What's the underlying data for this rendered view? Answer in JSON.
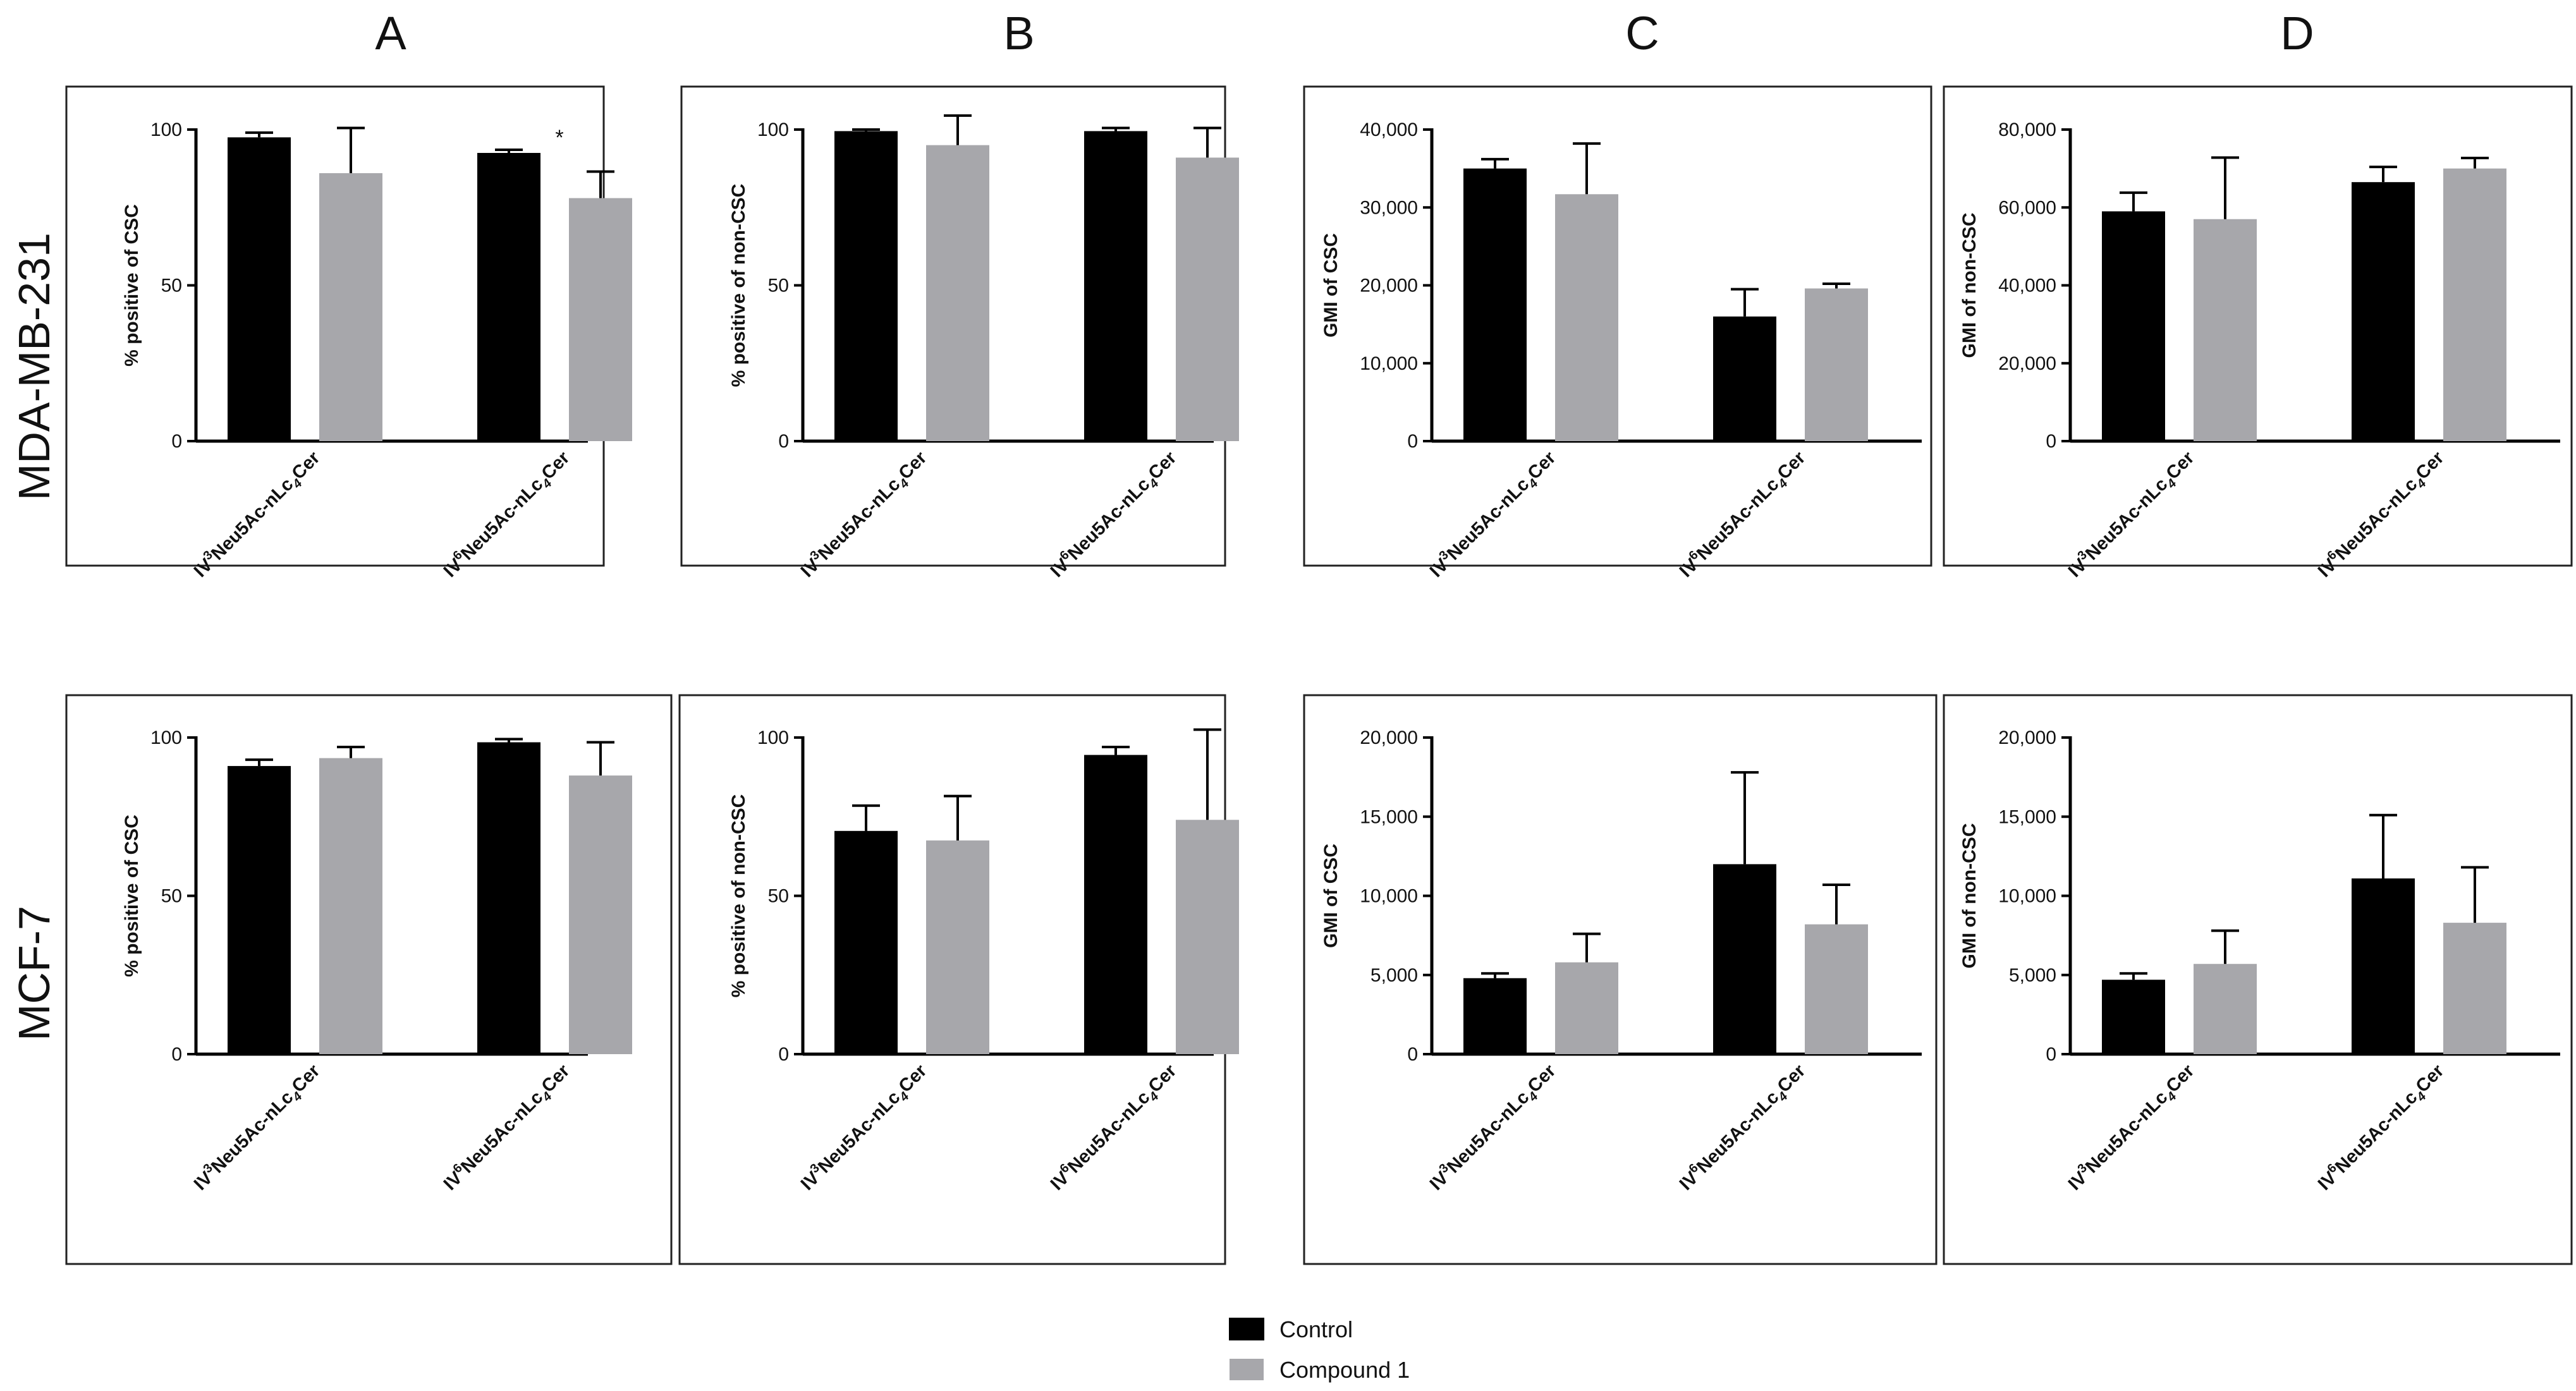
{
  "column_letters": [
    "A",
    "B",
    "C",
    "D"
  ],
  "row_labels": [
    "MDA-MB-231",
    "MCF-7"
  ],
  "legend": [
    {
      "name": "Control",
      "color": "#000000"
    },
    {
      "name": "Compound 1",
      "color": "#a7a7ab"
    }
  ],
  "colors": {
    "control": "#000000",
    "compound": "#a7a7ab",
    "frame": "#222222"
  },
  "chart_data": [
    {
      "type": "bar",
      "id": "mda-a",
      "ylabel": "% positive of CSC",
      "ylim": [
        0,
        100
      ],
      "yticks": [
        0,
        50,
        100
      ],
      "ytick_labels": [
        "0",
        "50",
        "100"
      ],
      "categories": [
        {
          "prefix": "IV",
          "sup": "3",
          "rest": "Neu5Ac-nLc",
          "sub": "4",
          "tail": "Cer"
        },
        {
          "prefix": "IV",
          "sup": "6",
          "rest": "Neu5Ac-nLc",
          "sub": "4",
          "tail": "Cer"
        }
      ],
      "series": [
        {
          "name": "Control",
          "values": [
            97.5,
            92.5
          ],
          "errors": [
            1.5,
            1
          ]
        },
        {
          "name": "Compound 1",
          "values": [
            86,
            78
          ],
          "errors": [
            14.5,
            8.5
          ]
        }
      ],
      "annotations": [
        {
          "text": "*",
          "category": 1,
          "series": 0
        }
      ]
    },
    {
      "type": "bar",
      "id": "mda-b",
      "ylabel": "% positive of non-CSC",
      "ylim": [
        0,
        100
      ],
      "yticks": [
        0,
        50,
        100
      ],
      "ytick_labels": [
        "0",
        "50",
        "100"
      ],
      "categories": [
        {
          "prefix": "IV",
          "sup": "3",
          "rest": "Neu5Ac-nLc",
          "sub": "4",
          "tail": "Cer"
        },
        {
          "prefix": "IV",
          "sup": "6",
          "rest": "Neu5Ac-nLc",
          "sub": "4",
          "tail": "Cer"
        }
      ],
      "series": [
        {
          "name": "Control",
          "values": [
            99.5,
            99.5
          ],
          "errors": [
            0.5,
            1
          ]
        },
        {
          "name": "Compound 1",
          "values": [
            95,
            91
          ],
          "errors": [
            9.5,
            9.5
          ]
        }
      ],
      "annotations": []
    },
    {
      "type": "bar",
      "id": "mda-c",
      "ylabel": "GMI of CSC",
      "ylim": [
        0,
        40000
      ],
      "yticks": [
        0,
        10000,
        20000,
        30000,
        40000
      ],
      "ytick_labels": [
        "0",
        "10,000",
        "20,000",
        "30,000",
        "40,000"
      ],
      "categories": [
        {
          "prefix": "IV",
          "sup": "3",
          "rest": "Neu5Ac-nLc",
          "sub": "4",
          "tail": "Cer"
        },
        {
          "prefix": "IV",
          "sup": "6",
          "rest": "Neu5Ac-nLc",
          "sub": "4",
          "tail": "Cer"
        }
      ],
      "series": [
        {
          "name": "Control",
          "values": [
            35000,
            16000
          ],
          "errors": [
            1200,
            3500
          ]
        },
        {
          "name": "Compound 1",
          "values": [
            31700,
            19600
          ],
          "errors": [
            6500,
            600
          ]
        }
      ],
      "annotations": []
    },
    {
      "type": "bar",
      "id": "mda-d",
      "ylabel": "GMI of non-CSC",
      "ylim": [
        0,
        80000
      ],
      "yticks": [
        0,
        20000,
        40000,
        60000,
        80000
      ],
      "ytick_labels": [
        "0",
        "20,000",
        "40,000",
        "60,000",
        "80,000"
      ],
      "categories": [
        {
          "prefix": "IV",
          "sup": "3",
          "rest": "Neu5Ac-nLc",
          "sub": "4",
          "tail": "Cer"
        },
        {
          "prefix": "IV",
          "sup": "6",
          "rest": "Neu5Ac-nLc",
          "sub": "4",
          "tail": "Cer"
        }
      ],
      "series": [
        {
          "name": "Control",
          "values": [
            59000,
            66500
          ],
          "errors": [
            4800,
            3900
          ]
        },
        {
          "name": "Compound 1",
          "values": [
            57000,
            70000
          ],
          "errors": [
            15800,
            2700
          ]
        }
      ],
      "annotations": []
    },
    {
      "type": "bar",
      "id": "mcf-a",
      "ylabel": "% positive of CSC",
      "ylim": [
        0,
        100
      ],
      "yticks": [
        0,
        50,
        100
      ],
      "ytick_labels": [
        "0",
        "50",
        "100"
      ],
      "categories": [
        {
          "prefix": "IV",
          "sup": "3",
          "rest": "Neu5Ac-nLc",
          "sub": "4",
          "tail": "Cer"
        },
        {
          "prefix": "IV",
          "sup": "6",
          "rest": "Neu5Ac-nLc",
          "sub": "4",
          "tail": "Cer"
        }
      ],
      "series": [
        {
          "name": "Control",
          "values": [
            91,
            98.5
          ],
          "errors": [
            2,
            1
          ]
        },
        {
          "name": "Compound 1",
          "values": [
            93.5,
            88
          ],
          "errors": [
            3.5,
            10.5
          ]
        }
      ],
      "annotations": []
    },
    {
      "type": "bar",
      "id": "mcf-b",
      "ylabel": "% positive of non-CSC",
      "ylim": [
        0,
        100
      ],
      "yticks": [
        0,
        50,
        100
      ],
      "ytick_labels": [
        "0",
        "50",
        "100"
      ],
      "categories": [
        {
          "prefix": "IV",
          "sup": "3",
          "rest": "Neu5Ac-nLc",
          "sub": "4",
          "tail": "Cer"
        },
        {
          "prefix": "IV",
          "sup": "6",
          "rest": "Neu5Ac-nLc",
          "sub": "4",
          "tail": "Cer"
        }
      ],
      "series": [
        {
          "name": "Control",
          "values": [
            70.5,
            94.5
          ],
          "errors": [
            8,
            2.5
          ]
        },
        {
          "name": "Compound 1",
          "values": [
            67.5,
            74
          ],
          "errors": [
            14,
            28.5
          ]
        }
      ],
      "annotations": []
    },
    {
      "type": "bar",
      "id": "mcf-c",
      "ylabel": "GMI of CSC",
      "ylim": [
        0,
        20000
      ],
      "yticks": [
        0,
        5000,
        10000,
        15000,
        20000
      ],
      "ytick_labels": [
        "0",
        "5,000",
        "10,000",
        "15,000",
        "20,000"
      ],
      "categories": [
        {
          "prefix": "IV",
          "sup": "3",
          "rest": "Neu5Ac-nLc",
          "sub": "4",
          "tail": "Cer"
        },
        {
          "prefix": "IV",
          "sup": "6",
          "rest": "Neu5Ac-nLc",
          "sub": "4",
          "tail": "Cer"
        }
      ],
      "series": [
        {
          "name": "Control",
          "values": [
            4800,
            12000
          ],
          "errors": [
            300,
            5800
          ]
        },
        {
          "name": "Compound 1",
          "values": [
            5800,
            8200
          ],
          "errors": [
            1800,
            2500
          ]
        }
      ],
      "annotations": []
    },
    {
      "type": "bar",
      "id": "mcf-d",
      "ylabel": "GMI of non-CSC",
      "ylim": [
        0,
        20000
      ],
      "yticks": [
        0,
        5000,
        10000,
        15000,
        20000
      ],
      "ytick_labels": [
        "0",
        "5,000",
        "10,000",
        "15,000",
        "20,000"
      ],
      "categories": [
        {
          "prefix": "IV",
          "sup": "3",
          "rest": "Neu5Ac-nLc",
          "sub": "4",
          "tail": "Cer"
        },
        {
          "prefix": "IV",
          "sup": "6",
          "rest": "Neu5Ac-nLc",
          "sub": "4",
          "tail": "Cer"
        }
      ],
      "series": [
        {
          "name": "Control",
          "values": [
            4700,
            11100
          ],
          "errors": [
            400,
            4000
          ]
        },
        {
          "name": "Compound 1",
          "values": [
            5700,
            8300
          ],
          "errors": [
            2100,
            3500
          ]
        }
      ],
      "annotations": []
    }
  ]
}
